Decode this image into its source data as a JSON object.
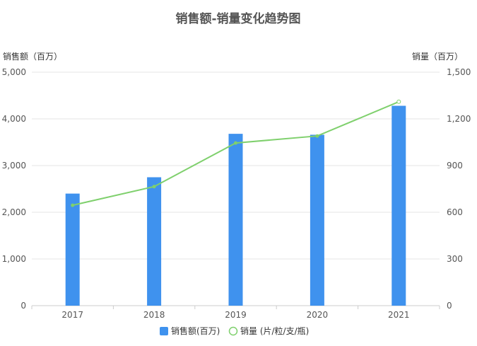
{
  "chart_data": {
    "type": "bar",
    "title": "销售额-销量变化趋势图",
    "categories": [
      "2017",
      "2018",
      "2019",
      "2020",
      "2021"
    ],
    "y_left": {
      "label": "销售额（百万）",
      "min": 0,
      "max": 5000,
      "ticks": [
        0,
        1000,
        2000,
        3000,
        4000,
        5000
      ],
      "tick_labels": [
        "0",
        "1,000",
        "2,000",
        "3,000",
        "4,000",
        "5,000"
      ]
    },
    "y_right": {
      "label": "销量（百万）",
      "min": 0,
      "max": 1500,
      "ticks": [
        0,
        300,
        600,
        900,
        1200,
        1500
      ],
      "tick_labels": [
        "0",
        "300",
        "600",
        "900",
        "1,200",
        "1,500"
      ]
    },
    "series": [
      {
        "name": "销售额(百万)",
        "type": "bar",
        "axis": "left",
        "color": "#3f92ee",
        "values": [
          2400,
          2750,
          3680,
          3660,
          4280
        ]
      },
      {
        "name": "销量 (片/粒/支/瓶)",
        "type": "line",
        "axis": "right",
        "color": "#7fd06d",
        "values": [
          645,
          765,
          1045,
          1090,
          1310
        ]
      }
    ],
    "grid": true,
    "legend": "bottom-center"
  }
}
